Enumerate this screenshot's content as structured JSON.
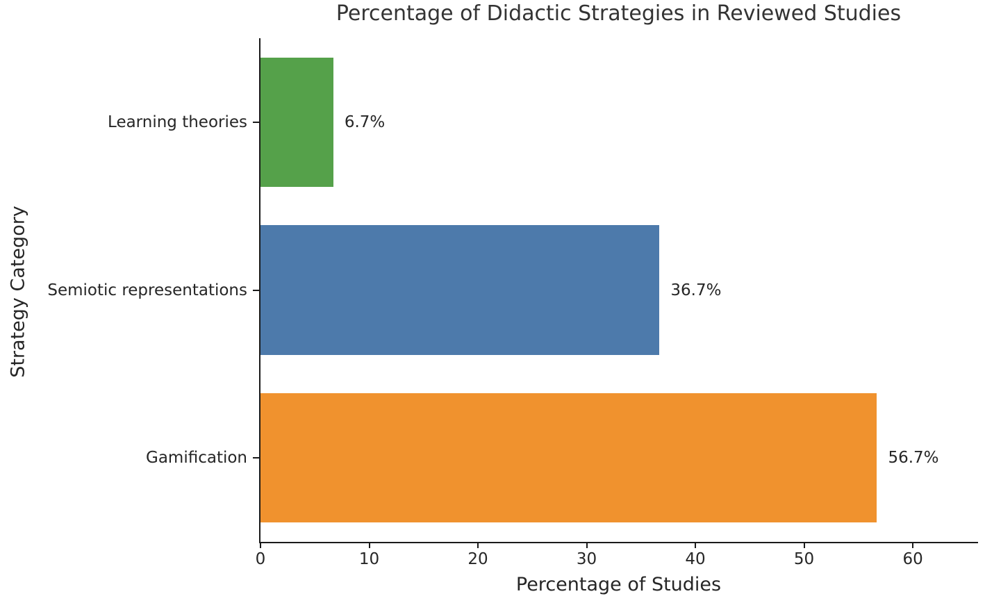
{
  "chart_data": {
    "type": "bar",
    "orientation": "horizontal",
    "title": "Percentage of Didactic Strategies in Reviewed Studies",
    "xlabel": "Percentage of Studies",
    "ylabel": "Strategy Category",
    "categories": [
      "Learning theories",
      "Semiotic representations",
      "Gamification"
    ],
    "values": [
      6.7,
      36.7,
      56.7
    ],
    "value_labels": [
      "6.7%",
      "36.7%",
      "56.7%"
    ],
    "colors": [
      "#55a14a",
      "#4d7aab",
      "#f0922e"
    ],
    "xticks": [
      0,
      10,
      20,
      30,
      40,
      50,
      60
    ],
    "xlim": [
      0,
      66
    ],
    "grid": false,
    "legend": false
  }
}
